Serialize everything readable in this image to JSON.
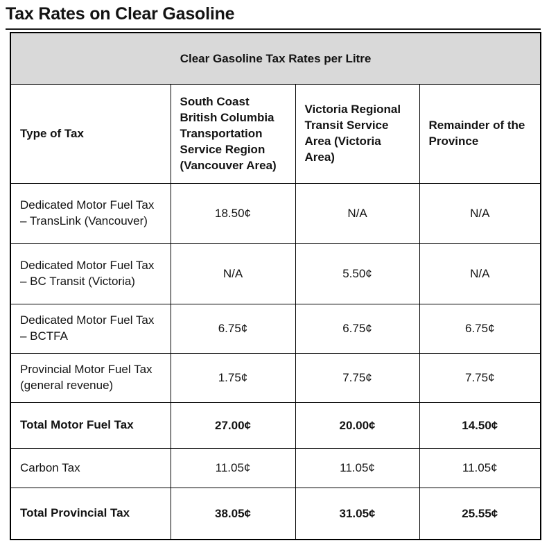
{
  "page": {
    "title": "Tax Rates on Clear Gasoline"
  },
  "table": {
    "caption": "Clear Gasoline Tax Rates per Litre",
    "columns": [
      "Type of Tax",
      "South Coast British Columbia Transportation Service Region (Vancouver Area)",
      "Victoria Regional Transit Service Area (Victoria Area)",
      "Remainder of the Province"
    ],
    "rows": [
      {
        "label": "Dedicated Motor Fuel Tax – TransLink (Vancouver)",
        "values": [
          "18.50¢",
          "N/A",
          "N/A"
        ],
        "bold": false
      },
      {
        "label": "Dedicated Motor Fuel Tax – BC Transit (Victoria)",
        "values": [
          "N/A",
          "5.50¢",
          "N/A"
        ],
        "bold": false
      },
      {
        "label": "Dedicated Motor Fuel Tax – BCTFA",
        "values": [
          "6.75¢",
          "6.75¢",
          "6.75¢"
        ],
        "bold": false
      },
      {
        "label": "Provincial Motor Fuel Tax (general revenue)",
        "values": [
          "1.75¢",
          "7.75¢",
          "7.75¢"
        ],
        "bold": false
      },
      {
        "label": "Total Motor Fuel Tax",
        "values": [
          "27.00¢",
          "20.00¢",
          "14.50¢"
        ],
        "bold": true
      },
      {
        "label": "Carbon Tax",
        "values": [
          "11.05¢",
          "11.05¢",
          "11.05¢"
        ],
        "bold": false
      },
      {
        "label": "Total Provincial Tax",
        "values": [
          "38.05¢",
          "31.05¢",
          "25.55¢"
        ],
        "bold": true
      }
    ],
    "colors": {
      "caption_background": "#d9d9d9",
      "border": "#000000",
      "text": "#131313"
    }
  }
}
